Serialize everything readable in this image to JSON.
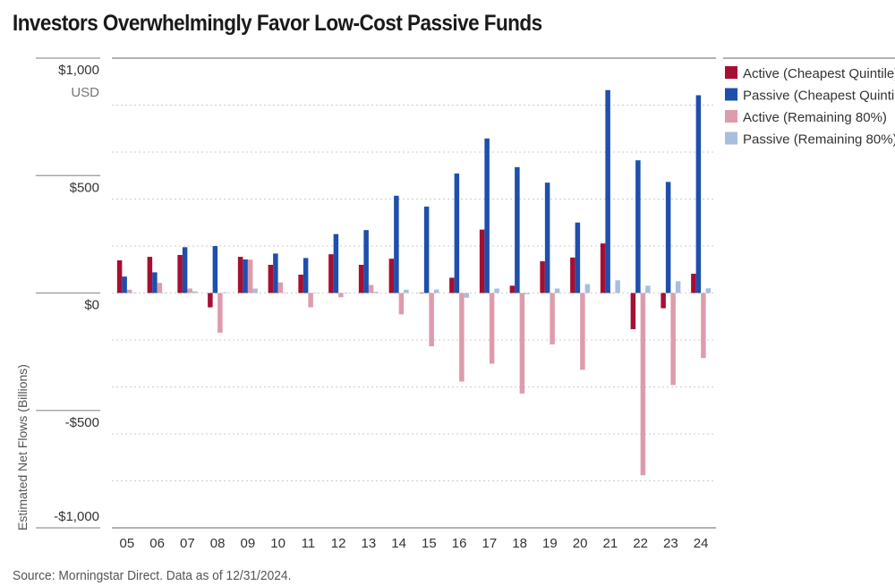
{
  "chart_data": {
    "type": "bar",
    "title": "Investors Overwhelmingly Favor Low-Cost Passive Funds",
    "ylabel": "Estimated Net Flows (Billions)",
    "yunit": "USD",
    "ylim": [
      -1000,
      1000
    ],
    "yticks": [
      1000,
      500,
      0,
      -500,
      -1000
    ],
    "ytick_labels": [
      "$1,000",
      "$500",
      "$0",
      "-$500",
      "-$1,000"
    ],
    "grid": true,
    "legend_position": "right",
    "categories": [
      "05",
      "06",
      "07",
      "08",
      "09",
      "10",
      "11",
      "12",
      "13",
      "14",
      "15",
      "16",
      "17",
      "18",
      "19",
      "20",
      "21",
      "22",
      "23",
      "24"
    ],
    "series": [
      {
        "name": "Active (Cheapest Quintile)",
        "color": "#a50f33",
        "values": [
          139,
          154,
          162,
          -61,
          154,
          120,
          78,
          165,
          120,
          146,
          0,
          65,
          270,
          31,
          135,
          151,
          211,
          -154,
          -65,
          82
        ]
      },
      {
        "name": "Passive (Cheapest Quintile)",
        "color": "#1f4fad",
        "values": [
          70,
          88,
          195,
          200,
          143,
          168,
          149,
          251,
          268,
          414,
          368,
          509,
          658,
          536,
          470,
          300,
          864,
          565,
          473,
          842
        ]
      },
      {
        "name": "Active (Remaining 80%)",
        "color": "#dd9cad",
        "values": [
          14,
          43,
          19,
          -169,
          142,
          45,
          -61,
          -18,
          34,
          -91,
          -227,
          -377,
          -301,
          -428,
          -219,
          -327,
          0,
          -776,
          -392,
          -277
        ]
      },
      {
        "name": "Passive (Remaining 80%)",
        "color": "#a8bedf",
        "values": [
          2,
          2,
          7,
          3,
          19,
          2,
          2,
          1,
          5,
          14,
          15,
          -20,
          19,
          -5,
          19,
          38,
          54,
          31,
          50,
          20
        ]
      }
    ]
  },
  "source": "Source: Morningstar Direct. Data as of 12/31/2024."
}
